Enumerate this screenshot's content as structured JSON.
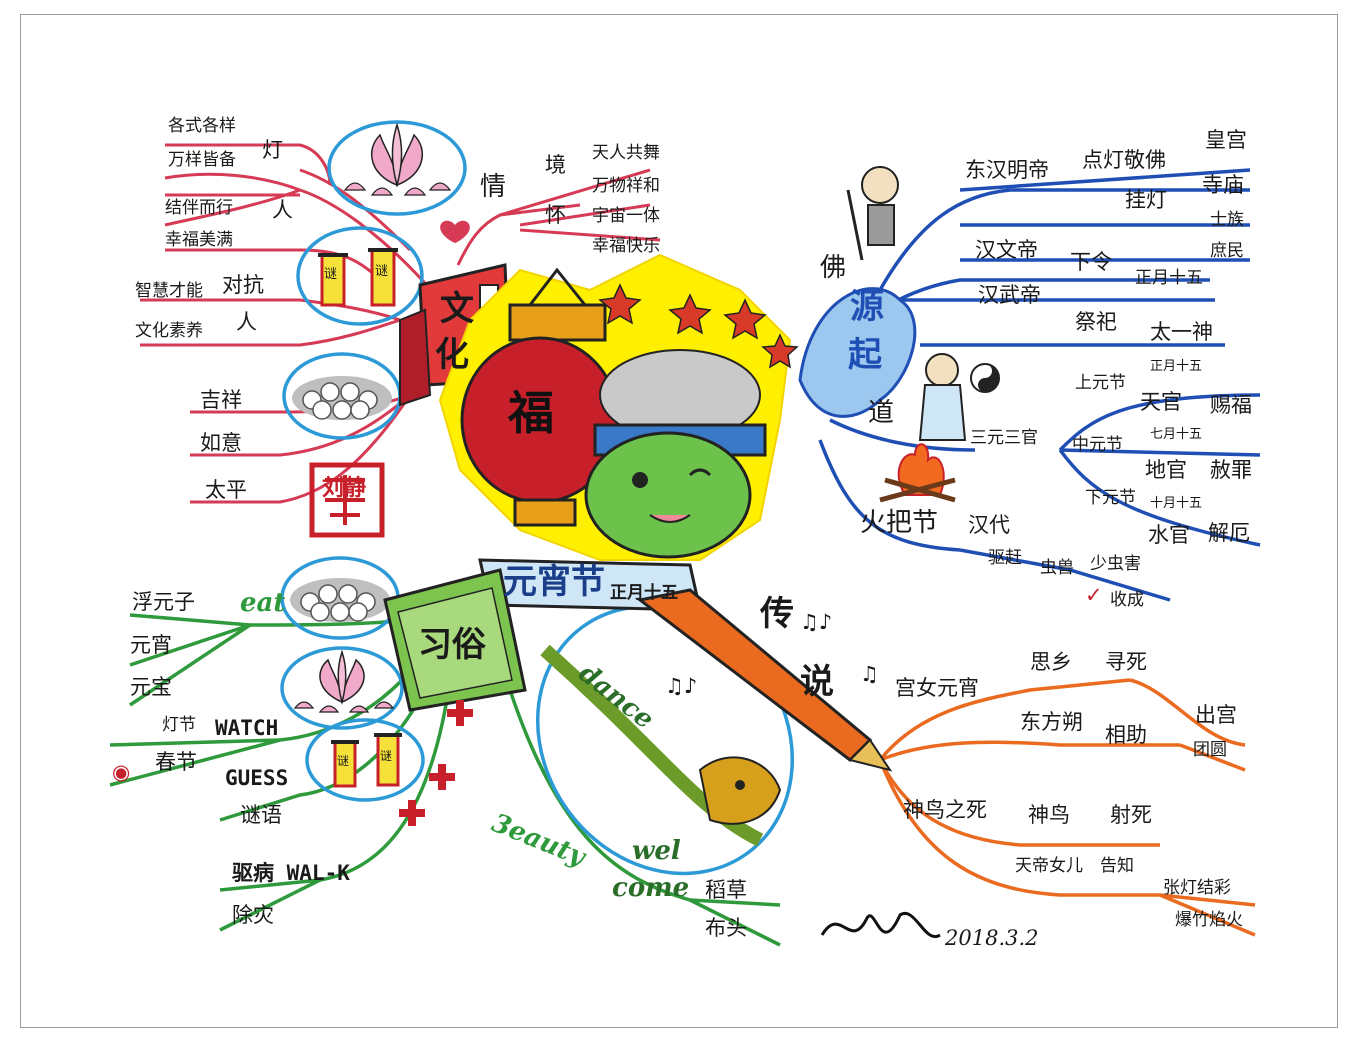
{
  "colors": {
    "culture": "#d63a55",
    "custom": "#2f9a3b",
    "origin": "#1f4fb5",
    "legend": "#ea6a1f",
    "circle": "#2c9ad6",
    "lantern": "#c8202a",
    "center_glow": "#fff000"
  },
  "center": {
    "title": "元宵节",
    "date": "正月十五",
    "lantern_char": "福",
    "stamp": "刘静"
  },
  "culture": {
    "label_1": "文",
    "label_2": "化",
    "lamp": {
      "topic": "灯",
      "items": [
        "各式各样",
        "万样皆备"
      ]
    },
    "people": {
      "topic": "人",
      "items": [
        "结伴而行",
        "幸福美满"
      ]
    },
    "contest": {
      "topic": "对抗",
      "sub": "人",
      "items": [
        "智慧才能",
        "文化素养"
      ]
    },
    "wishes": [
      "吉祥",
      "如意",
      "太平"
    ],
    "scroll_char": "谜"
  },
  "feeling": {
    "topic": "情",
    "jing": {
      "label": "境",
      "items": [
        "天人共舞",
        "万物祥和"
      ]
    },
    "huai": {
      "label": "怀",
      "items": [
        "宇宙一体",
        "幸福快乐"
      ]
    }
  },
  "origin": {
    "label_1": "源",
    "label_2": "起",
    "buddha": {
      "label": "佛",
      "ming": {
        "label": "东汉明帝",
        "action": "点灯敬佛",
        "places": [
          "皇宫",
          "寺庙"
        ],
        "hang": "挂灯",
        "people": [
          "士族",
          "庶民"
        ]
      },
      "wen": {
        "label": "汉文帝",
        "action": "下令",
        "date": "正月十五"
      },
      "wu": {
        "label": "汉武帝",
        "action": "祭祀",
        "target": "太一神"
      }
    },
    "dao": {
      "label": "道",
      "san": "三元三官",
      "upper": {
        "label": "上元节",
        "date": "正月十五",
        "god": "天官",
        "deed": "赐福"
      },
      "middle": {
        "label": "中元节",
        "date": "七月十五",
        "god": "地官",
        "deed": "赦罪"
      },
      "lower": {
        "label": "下元节",
        "date": "十月十五",
        "god": "水官",
        "deed": "解厄"
      }
    },
    "torch": {
      "label": "火把节",
      "era": "汉代",
      "drive": "驱赶",
      "pests": "虫兽",
      "less": "少虫害",
      "harvest": "收成"
    }
  },
  "legend": {
    "label_1": "传",
    "label_2": "说",
    "palace": {
      "label": "宫女元宵",
      "a": "思乡",
      "b": "寻死",
      "who": "东方朔",
      "help": "相助",
      "c": "出宫",
      "d": "团圆"
    },
    "bird": {
      "label": "神鸟之死",
      "a": "神鸟",
      "b": "射死",
      "who": "天帝女儿",
      "tell": "告知",
      "c": "张灯结彩",
      "d": "爆竹焰火"
    }
  },
  "custom": {
    "label": "习俗",
    "eat": {
      "word": "eat",
      "items": [
        "浮元子",
        "元宵",
        "元宝"
      ]
    },
    "watch": {
      "word": "WATCH",
      "items": [
        "灯节",
        "春节"
      ]
    },
    "guess": {
      "word": "GUESS",
      "item": "谜语"
    },
    "walk": {
      "word": "驱病 WAL-K",
      "item": "除灾"
    },
    "dance": {
      "word": "dance"
    },
    "welcome": {
      "word_1": "wel",
      "word_2": "come",
      "script": "3eauty",
      "items": [
        "稻草",
        "布头"
      ]
    }
  },
  "signature": {
    "name": "刘静",
    "date": "2018.3.2"
  }
}
